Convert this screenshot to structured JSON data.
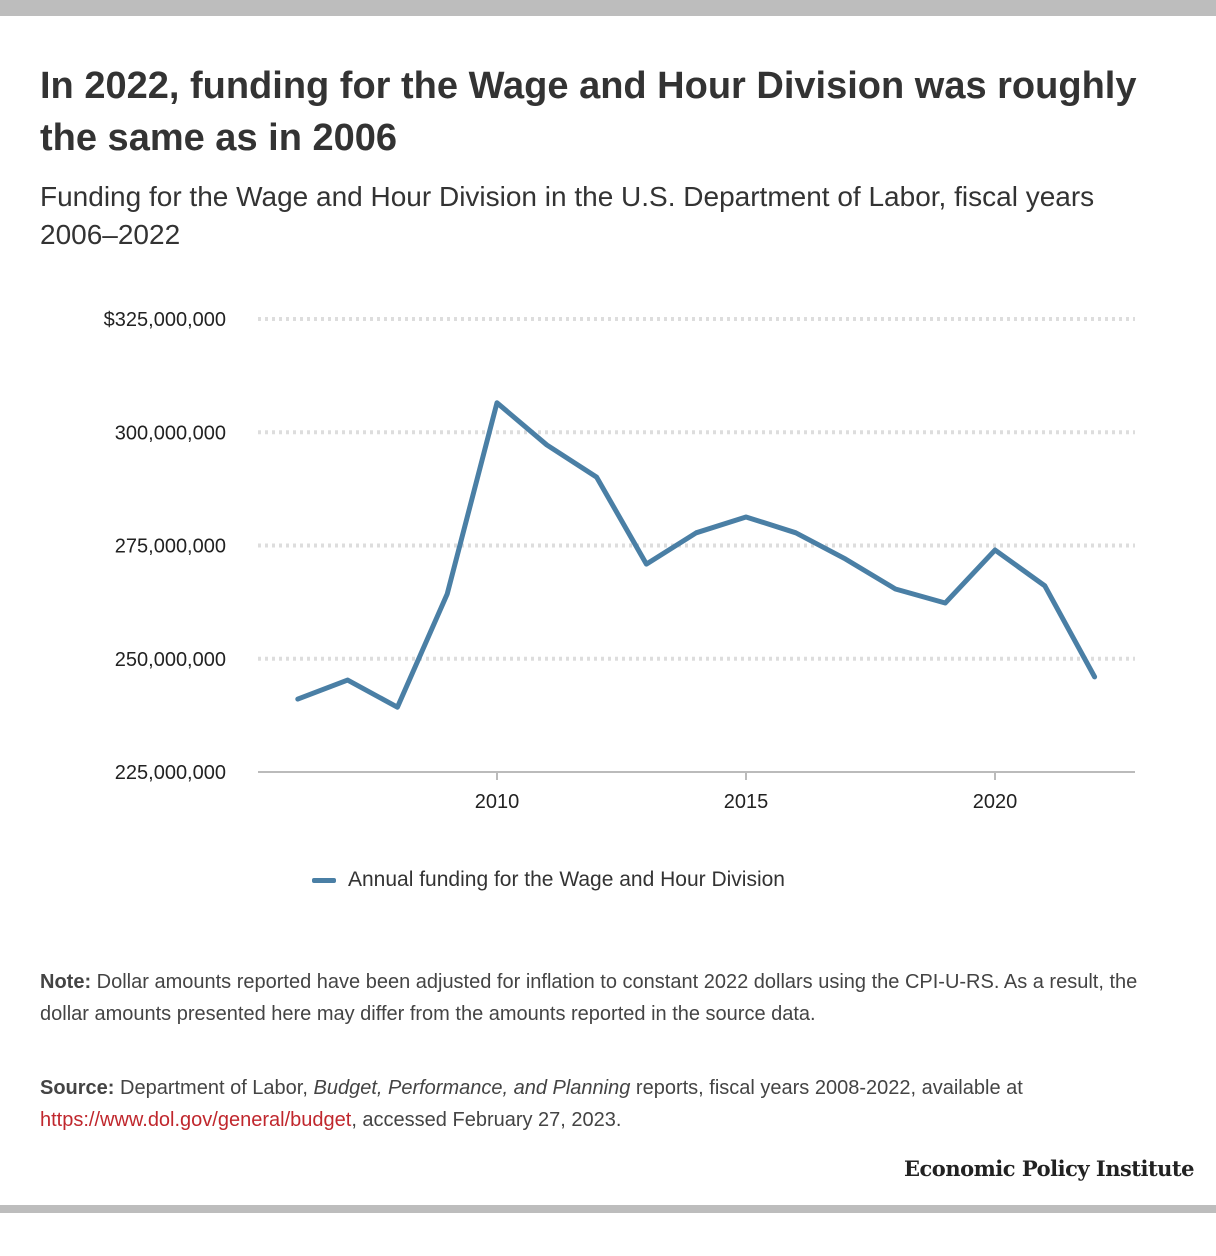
{
  "title": "In 2022, funding for the Wage and Hour Division was roughly the same as in 2006",
  "subtitle": "Funding for the Wage and Hour Division in the U.S. Department of Labor, fiscal years 2006–2022",
  "chart_data": {
    "type": "line",
    "x": [
      2006,
      2007,
      2008,
      2009,
      2010,
      2011,
      2012,
      2013,
      2014,
      2015,
      2016,
      2017,
      2018,
      2019,
      2020,
      2021,
      2022
    ],
    "series": [
      {
        "name": "Annual funding for the Wage and Hour Division",
        "values": [
          241100000,
          245300000,
          239300000,
          264300000,
          306500000,
          297200000,
          290100000,
          270900000,
          277800000,
          281300000,
          277800000,
          272000000,
          265400000,
          262300000,
          274000000,
          266100000,
          246000000
        ]
      }
    ],
    "ylim": [
      225000000,
      325000000
    ],
    "xlim": [
      2005.2,
      2022.8
    ],
    "yticks": [
      225000000,
      250000000,
      275000000,
      300000000,
      325000000
    ],
    "ytick_labels": [
      "225,000,000",
      "250,000,000",
      "275,000,000",
      "300,000,000",
      "$325,000,000"
    ],
    "xticks": [
      2010,
      2015,
      2020
    ],
    "xtick_labels": [
      "2010",
      "2015",
      "2020"
    ],
    "grid": "horizontal dotted",
    "legend": "bottom",
    "line_color": "#4a7fa5"
  },
  "note_label": "Note:",
  "note": " Dollar amounts reported have been adjusted for inflation to constant 2022 dollars using the CPI-U-RS. As a result, the dollar amounts presented here may differ from the amounts reported in the source data.",
  "source_label": "Source:",
  "source_pre": " Department of Labor, ",
  "source_italic": "Budget, Performance, and Planning",
  "source_mid": " reports, fiscal years 2008-2022, available at ",
  "source_link": "https://www.dol.gov/general/budget",
  "source_post": ", accessed February 27, 2023.",
  "logo": "Economic Policy Institute"
}
